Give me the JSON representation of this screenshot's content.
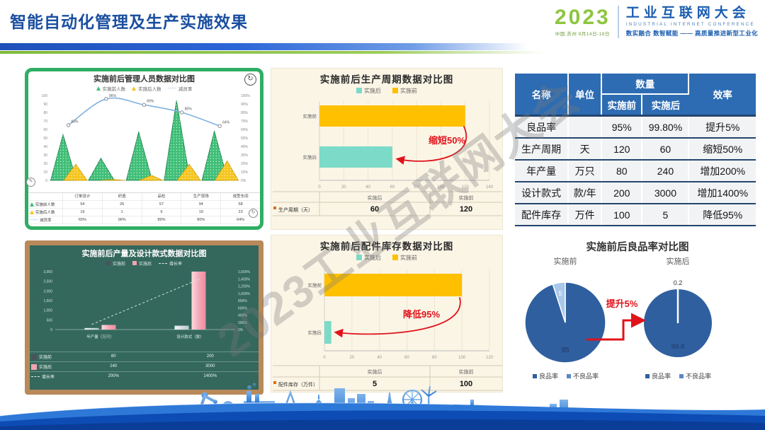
{
  "header": {
    "title": "智能自动化管理及生产实施效果",
    "logo": {
      "year": "2023",
      "venue": "中国·苏州 8月14日-18日",
      "name": "工业互联网大会",
      "name_en": "INDUSTRIAL INTERNET CONFERENCE",
      "tagline": "数实融合 数智赋能 —— 高质量推进新型工业化"
    }
  },
  "watermark": "2023工业互联网大会",
  "colors": {
    "title_blue": "#1b4fa0",
    "brand_green": "#8dc63f",
    "brand_blue": "#1a5db0",
    "bar_yellow": "#ffc000",
    "bar_teal": "#7bdac8",
    "triangle_green": "#3fbf77",
    "annotation_red": "#e0131a",
    "table_header_blue": "#2d6cb3",
    "pie_blue": "#2f5f9f",
    "pie_light_blue": "#a9c7e9",
    "board_green": "#34685d",
    "board_frame": "#b9895a"
  },
  "chart_data": {
    "staff": {
      "type": "combo-area-line",
      "title": "实施前后管理人员数据对比图",
      "legend": [
        "实施前人数",
        "实施后人数",
        "减员率"
      ],
      "categories": [
        "订单设计",
        "织造",
        "品检",
        "生产现场",
        "成型车间"
      ],
      "series": [
        {
          "name": "实施前人数",
          "values": [
            54,
            26,
            57,
            94,
            58
          ]
        },
        {
          "name": "实施后人数",
          "values": [
            19,
            1,
            6,
            19,
            23
          ]
        },
        {
          "name": "减员率",
          "values": [
            65,
            96,
            89,
            80,
            64
          ],
          "labels": [
            "65%",
            "96%",
            "89%",
            "80%",
            "64%"
          ]
        }
      ],
      "ylim_left": [
        0,
        100
      ],
      "ylim_right": [
        0,
        100
      ],
      "yticks_left": [
        "0",
        "10",
        "20",
        "30",
        "40",
        "50",
        "60",
        "70",
        "80",
        "90",
        "100"
      ],
      "yticks_right": [
        "0%",
        "10%",
        "20%",
        "30%",
        "40%",
        "50%",
        "60%",
        "70%",
        "80%",
        "90%",
        "100%"
      ]
    },
    "cycle": {
      "type": "bar",
      "title": "实施前后生产周期数据对比图",
      "legend": [
        {
          "label": "实施后",
          "color": "#7bdac8"
        },
        {
          "label": "实施前",
          "color": "#ffc000"
        }
      ],
      "bars": [
        {
          "label": "实施前",
          "value": 120,
          "color": "#ffc000"
        },
        {
          "label": "实施后",
          "value": 60,
          "color": "#7bdac8"
        }
      ],
      "xlim": [
        0,
        140
      ],
      "xticks": [
        "0",
        "20",
        "40",
        "60",
        "80",
        "100",
        "120",
        "140"
      ],
      "annotation": "缩短50%",
      "table": {
        "row_label": "生产周期（天）",
        "columns": [
          "实施后",
          "实施前"
        ],
        "values": [
          "60",
          "120"
        ]
      }
    },
    "summary_table": {
      "type": "table",
      "headers": {
        "name": "名称",
        "unit": "单位",
        "quantity": "数量",
        "before": "实施前",
        "after": "实施后",
        "efficiency": "效率"
      },
      "rows": [
        {
          "name": "良品率",
          "unit": "",
          "before": "95%",
          "after": "99.80%",
          "efficiency": "提升5%"
        },
        {
          "name": "生产周期",
          "unit": "天",
          "before": "120",
          "after": "60",
          "efficiency": "缩短50%"
        },
        {
          "name": "年产量",
          "unit": "万只",
          "before": "80",
          "after": "240",
          "efficiency": "增加200%"
        },
        {
          "name": "设计款式",
          "unit": "款/年",
          "before": "200",
          "after": "3000",
          "efficiency": "增加1400%"
        },
        {
          "name": "配件库存",
          "unit": "万件",
          "before": "100",
          "after": "5",
          "efficiency": "降低95%"
        }
      ]
    },
    "output": {
      "type": "bar",
      "title": "实施前后产量及设计款式数据对比图",
      "legend": [
        "实施前",
        "实施后",
        "增长率"
      ],
      "categories": [
        "年产量（万只）",
        "设计款式（款）"
      ],
      "series": [
        {
          "name": "实施前",
          "values": [
            80,
            200
          ]
        },
        {
          "name": "实施后",
          "values": [
            240,
            3000
          ]
        },
        {
          "name": "增长率",
          "values": [
            200,
            1400
          ],
          "labels": [
            "200%",
            "1400%"
          ]
        }
      ],
      "ylim_left": [
        0,
        3000
      ],
      "ylim_right": [
        0,
        1600
      ],
      "yticks_left": [
        "0",
        "500",
        "1,000",
        "1,500",
        "2,000",
        "2,500",
        "3,000"
      ],
      "yticks_right": [
        "0%",
        "200%",
        "400%",
        "600%",
        "800%",
        "1,000%",
        "1,200%",
        "1,400%",
        "1,600%"
      ]
    },
    "inventory": {
      "type": "bar",
      "title": "实施前后配件库存数据对比图",
      "legend": [
        {
          "label": "实施后",
          "color": "#7bdac8"
        },
        {
          "label": "实施前",
          "color": "#ffc000"
        }
      ],
      "bars": [
        {
          "label": "实施前",
          "value": 100,
          "color": "#ffc000"
        },
        {
          "label": "实施后",
          "value": 5,
          "color": "#7bdac8"
        }
      ],
      "xlim": [
        0,
        120
      ],
      "xticks": [
        "0",
        "20",
        "40",
        "60",
        "80",
        "100",
        "120"
      ],
      "annotation": "降低95%",
      "table": {
        "row_label": "配件库存（万件）",
        "columns": [
          "实施后",
          "实施前"
        ],
        "values": [
          "5",
          "100"
        ]
      }
    },
    "yield": {
      "type": "pie",
      "title": "实施前后良品率对比图",
      "annotation": "提升5%",
      "pies": [
        {
          "label": "实施前",
          "slices": [
            {
              "name": "良品率",
              "value": 95,
              "text": "95"
            },
            {
              "name": "不良品率",
              "value": 5,
              "text": "5"
            }
          ],
          "legend": [
            "良品率",
            "不良品率"
          ]
        },
        {
          "label": "实施后",
          "slices": [
            {
              "name": "良品率",
              "value": 99.8,
              "text": "99.8"
            },
            {
              "name": "不良品率",
              "value": 0.2,
              "text": "0.2"
            }
          ],
          "legend": [
            "良品率",
            "不良品率"
          ]
        }
      ]
    }
  }
}
